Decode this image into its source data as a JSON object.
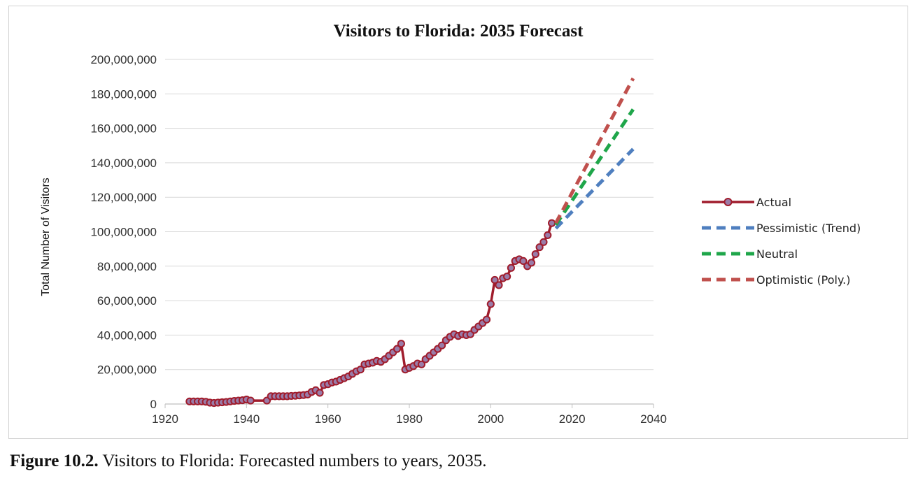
{
  "chart_data": {
    "type": "line",
    "title": "Visitors to Florida: 2035 Forecast",
    "xlabel": "",
    "ylabel": "Total Number of Visitors",
    "xlim": [
      1920,
      2040
    ],
    "ylim": [
      0,
      200000000
    ],
    "xticks": [
      1920,
      1940,
      1960,
      1980,
      2000,
      2020,
      2040
    ],
    "xtick_labels": [
      "1920",
      "1940",
      "1960",
      "1980",
      "2000",
      "2020",
      "2040"
    ],
    "yticks": [
      0,
      20000000,
      40000000,
      60000000,
      80000000,
      100000000,
      120000000,
      140000000,
      160000000,
      180000000,
      200000000
    ],
    "ytick_labels": [
      "0",
      "20,000,000",
      "40,000,000",
      "60,000,000",
      "80,000,000",
      "100,000,000",
      "120,000,000",
      "140,000,000",
      "160,000,000",
      "180,000,000",
      "200,000,000"
    ],
    "grid": true,
    "legend_position": "right",
    "series": [
      {
        "name": "Actual",
        "style": "solid-markers",
        "color": "#a01c2c",
        "marker_color": "#9a7ca8",
        "x": [
          1926,
          1927,
          1928,
          1929,
          1930,
          1931,
          1932,
          1933,
          1934,
          1935,
          1936,
          1937,
          1938,
          1939,
          1940,
          1941,
          1945,
          1946,
          1947,
          1948,
          1949,
          1950,
          1951,
          1952,
          1953,
          1954,
          1955,
          1956,
          1957,
          1958,
          1959,
          1960,
          1961,
          1962,
          1963,
          1964,
          1965,
          1966,
          1967,
          1968,
          1969,
          1970,
          1971,
          1972,
          1973,
          1974,
          1975,
          1976,
          1977,
          1978,
          1979,
          1980,
          1981,
          1982,
          1983,
          1984,
          1985,
          1986,
          1987,
          1988,
          1989,
          1990,
          1991,
          1992,
          1993,
          1994,
          1995,
          1996,
          1997,
          1998,
          1999,
          2000,
          2001,
          2002,
          2003,
          2004,
          2005,
          2006,
          2007,
          2008,
          2009,
          2010,
          2011,
          2012,
          2013,
          2014,
          2015
        ],
        "values": [
          1500000,
          1500000,
          1500000,
          1500000,
          1300000,
          800000,
          600000,
          800000,
          1000000,
          1200000,
          1500000,
          1800000,
          2000000,
          2200000,
          2600000,
          2000000,
          2000000,
          4500000,
          4500000,
          4500000,
          4500000,
          4500000,
          4700000,
          4800000,
          5000000,
          5200000,
          5500000,
          7000000,
          8000000,
          6500000,
          11000000,
          11500000,
          12500000,
          13000000,
          14000000,
          15000000,
          16000000,
          17500000,
          19000000,
          20000000,
          23000000,
          23500000,
          24000000,
          25000000,
          24500000,
          26000000,
          28000000,
          30000000,
          32000000,
          35000000,
          20000000,
          21000000,
          22000000,
          23500000,
          23000000,
          26000000,
          28000000,
          30000000,
          32000000,
          34000000,
          37000000,
          39000000,
          40500000,
          39500000,
          40500000,
          40000000,
          40500000,
          43000000,
          45000000,
          47000000,
          49000000,
          58000000,
          72000000,
          69000000,
          73000000,
          74000000,
          79000000,
          83000000,
          84000000,
          83000000,
          80000000,
          82000000,
          87000000,
          91000000,
          94000000,
          98000000,
          105000000
        ]
      },
      {
        "name": "Pessimistic (Trend)",
        "style": "dashed",
        "color": "#4f7fbf",
        "x": [
          2016,
          2035
        ],
        "values": [
          102000000,
          148000000
        ]
      },
      {
        "name": "Neutral",
        "style": "dashed",
        "color": "#1fa64a",
        "x": [
          2016,
          2035
        ],
        "values": [
          104000000,
          171000000
        ]
      },
      {
        "name": "Optimistic (Poly.)",
        "style": "dashed",
        "color": "#c0504d",
        "x": [
          2016,
          2035
        ],
        "values": [
          105000000,
          189000000
        ]
      }
    ]
  },
  "caption": {
    "label": "Figure 10.2.",
    "text": " Visitors to Florida: Forecasted numbers to years, 2035."
  }
}
